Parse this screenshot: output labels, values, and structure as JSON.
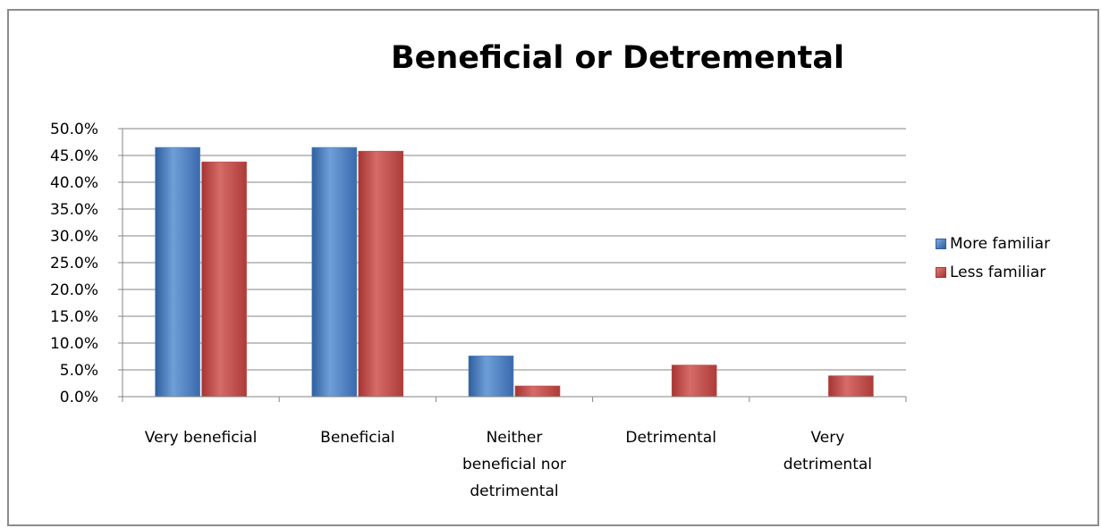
{
  "chart_data": {
    "type": "bar",
    "title": "Beneficial or Detremental",
    "xlabel": "",
    "ylabel": "",
    "ylim": [
      0,
      50
    ],
    "ytick_step": 5,
    "yticks": [
      "0.0%",
      "5.0%",
      "10.0%",
      "15.0%",
      "20.0%",
      "25.0%",
      "30.0%",
      "35.0%",
      "40.0%",
      "45.0%",
      "50.0%"
    ],
    "categories": [
      [
        "Very beneficial"
      ],
      [
        "Beneficial"
      ],
      [
        "Neither",
        "beneficial nor",
        "detrimental"
      ],
      [
        "Detrimental"
      ],
      [
        "Very",
        "detrimental"
      ]
    ],
    "series": [
      {
        "name": "More familiar",
        "color": "#4f81bd",
        "values": [
          46.5,
          46.5,
          7.6,
          0,
          0
        ]
      },
      {
        "name": "Less familiar",
        "color": "#c0504d",
        "values": [
          43.8,
          45.8,
          2.0,
          5.9,
          3.9
        ]
      }
    ],
    "grid": true,
    "legend_position": "right"
  }
}
